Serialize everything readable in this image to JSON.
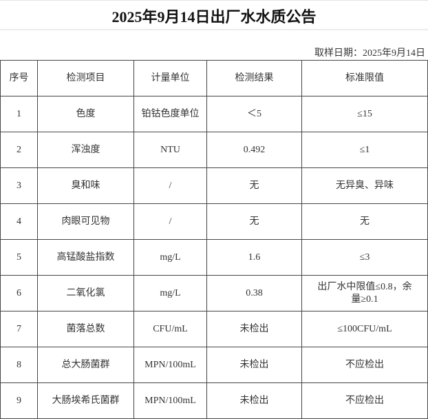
{
  "title": "2025年9月14日出厂水水质公告",
  "sampling_date": "取样日期：2025年9月14日",
  "table": {
    "headers": [
      "序号",
      "检测项目",
      "计量单位",
      "检测结果",
      "标准限值"
    ],
    "rows": [
      [
        "1",
        "色度",
        "铂钴色度单位",
        "＜5",
        "≤15"
      ],
      [
        "2",
        "浑浊度",
        "NTU",
        "0.492",
        "≤1"
      ],
      [
        "3",
        "臭和味",
        "/",
        "无",
        "无异臭、异味"
      ],
      [
        "4",
        "肉眼可见物",
        "/",
        "无",
        "无"
      ],
      [
        "5",
        "高锰酸盐指数",
        "mg/L",
        "1.6",
        "≤3"
      ],
      [
        "6",
        "二氧化氯",
        "mg/L",
        "0.38",
        "出厂水中限值≤0.8，余量≥0.1"
      ],
      [
        "7",
        "菌落总数",
        "CFU/mL",
        "未检出",
        "≤100CFU/mL"
      ],
      [
        "8",
        "总大肠菌群",
        "MPN/100mL",
        "未检出",
        "不应检出"
      ],
      [
        "9",
        "大肠埃希氏菌群",
        "MPN/100mL",
        "未检出",
        "不应检出"
      ]
    ]
  }
}
